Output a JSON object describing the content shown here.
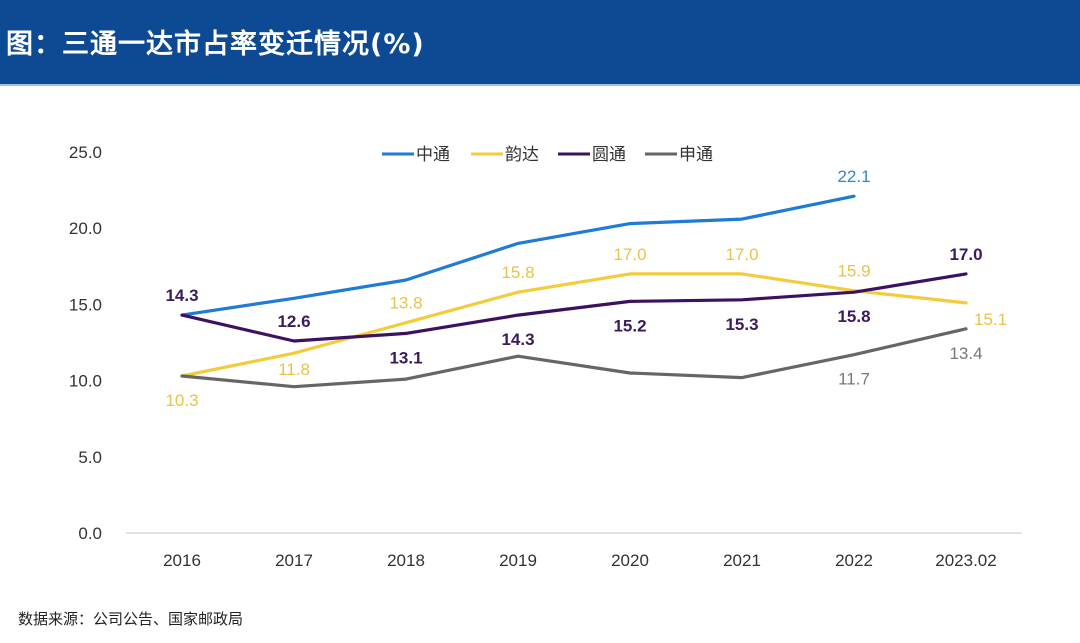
{
  "header": {
    "title": "图：三通一达市占率变迁情况(%)"
  },
  "source": "数据来源：公司公告、国家邮政局",
  "chart_data": {
    "type": "line",
    "title": "图：三通一达市占率变迁情况(%)",
    "xlabel": "",
    "ylabel": "",
    "categories": [
      "2016",
      "2017",
      "2018",
      "2019",
      "2020",
      "2021",
      "2022",
      "2023.02"
    ],
    "ylim": [
      0,
      25
    ],
    "yticks": [
      "0.0",
      "5.0",
      "10.0",
      "15.0",
      "20.0",
      "25.0"
    ],
    "grid": false,
    "legend_position": "top-center",
    "series": [
      {
        "name": "中通",
        "color": "#1f7ad8",
        "label_color": "#2f86d8",
        "values": [
          14.3,
          15.4,
          16.6,
          19.0,
          20.3,
          20.6,
          22.1,
          null
        ],
        "labels": [
          null,
          null,
          null,
          null,
          null,
          null,
          "22.1",
          null
        ],
        "label_pos": [
          null,
          null,
          null,
          null,
          null,
          null,
          "above",
          null
        ]
      },
      {
        "name": "韵达",
        "color": "#f2cc3a",
        "label_color": "#e8c24a",
        "values": [
          10.3,
          11.8,
          13.8,
          15.8,
          17.0,
          17.0,
          15.9,
          15.1
        ],
        "labels": [
          "10.3",
          "11.8",
          "13.8",
          "15.8",
          "17.0",
          "17.0",
          "15.9",
          "15.1"
        ],
        "label_pos": [
          "below",
          "below-on",
          "above",
          "above",
          "above",
          "above",
          "above",
          "right"
        ]
      },
      {
        "name": "圆通",
        "color": "#3d1062",
        "label_color": "#3d1a5e",
        "values": [
          14.3,
          12.6,
          13.1,
          14.3,
          15.2,
          15.3,
          15.8,
          17.0
        ],
        "labels": [
          "14.3",
          "12.6",
          "13.1",
          "14.3",
          "15.2",
          "15.3",
          "15.8",
          "17.0"
        ],
        "label_pos": [
          "above",
          "above",
          "below",
          "below",
          "below",
          "below",
          "below",
          "above"
        ]
      },
      {
        "name": "申通",
        "color": "#666666",
        "label_color": "#777777",
        "values": [
          10.3,
          9.6,
          10.1,
          11.6,
          10.5,
          10.2,
          11.7,
          13.4
        ],
        "labels": [
          null,
          null,
          null,
          null,
          null,
          null,
          "11.7",
          "13.4"
        ],
        "label_pos": [
          null,
          null,
          null,
          null,
          null,
          null,
          "below",
          "below"
        ]
      }
    ]
  }
}
